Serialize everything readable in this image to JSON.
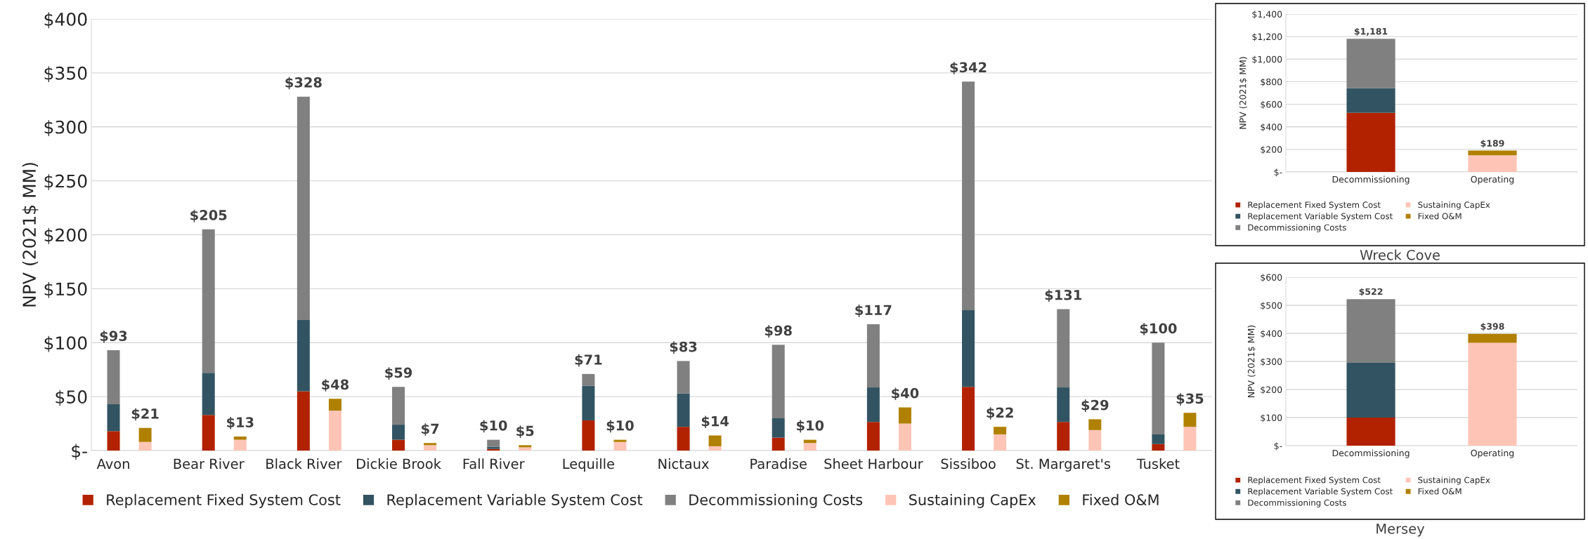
{
  "chart_data": [
    {
      "type": "bar",
      "stacked": true,
      "ylabel": "NPV (2021$ MM)",
      "legend": "bottom",
      "grid": "y",
      "categories": [
        "Avon",
        null,
        "Bear River",
        null,
        "Black River",
        null,
        "Dickie Brook",
        null,
        "Fall River",
        null,
        "Lequille",
        null,
        "Nictaux",
        null,
        "Paradise",
        null,
        "Sheet Harbour",
        null,
        "Sissiboo",
        null,
        "St. Margaret's",
        null,
        "Tusket",
        null
      ],
      "ylim": [
        0,
        400
      ],
      "yticks": [
        {
          "value": 0,
          "label": "$-"
        },
        {
          "value": 50,
          "label": "$50"
        },
        {
          "value": 100,
          "label": "$100"
        },
        {
          "value": 150,
          "label": "$150"
        },
        {
          "value": 200,
          "label": "$200"
        },
        {
          "value": 250,
          "label": "$250"
        },
        {
          "value": 300,
          "label": "$300"
        },
        {
          "value": 350,
          "label": "$350"
        },
        {
          "value": 400,
          "label": "$400"
        }
      ],
      "series": [
        {
          "name": "Replacement Fixed System Cost",
          "color": "#b22200",
          "values": [
            18,
            null,
            33,
            null,
            55,
            null,
            10,
            null,
            1.5,
            null,
            28,
            null,
            22,
            null,
            12,
            null,
            26.5,
            null,
            59,
            null,
            26.5,
            null,
            6,
            null
          ]
        },
        {
          "name": "Replacement Variable System Cost",
          "color": "#325462",
          "values": [
            25,
            null,
            39,
            null,
            66,
            null,
            14,
            null,
            2,
            null,
            32,
            null,
            31,
            null,
            18,
            null,
            32,
            null,
            71,
            null,
            32,
            null,
            9,
            null
          ]
        },
        {
          "name": "Decommissioning Costs",
          "color": "#808080",
          "values": [
            50,
            null,
            133,
            null,
            207,
            null,
            35,
            null,
            6.5,
            null,
            11,
            null,
            30,
            null,
            68,
            null,
            58.5,
            null,
            212,
            null,
            72.5,
            null,
            85,
            null
          ]
        },
        {
          "name": "Sustaining CapEx",
          "color": "#fec5b7",
          "values": [
            null,
            8,
            null,
            10,
            null,
            37,
            null,
            5,
            null,
            3,
            null,
            8,
            null,
            4,
            null,
            7,
            null,
            25,
            null,
            15,
            null,
            19,
            null,
            22
          ]
        },
        {
          "name": "Fixed O&M",
          "color": "#b08000",
          "values": [
            null,
            13,
            null,
            3,
            null,
            11,
            null,
            2,
            null,
            2,
            null,
            2,
            null,
            10,
            null,
            3,
            null,
            15,
            null,
            7,
            null,
            10,
            null,
            13
          ]
        }
      ],
      "totals": [
        "$93",
        "$21",
        "$205",
        "$13",
        "$328",
        "$48",
        "$59",
        "$7",
        "$10",
        "$5",
        "$71",
        "$10",
        "$83",
        "$14",
        "$98",
        "$10",
        "$117",
        "$40",
        "$342",
        "$22",
        "$131",
        "$29",
        "$100",
        "$35"
      ]
    },
    {
      "type": "bar",
      "stacked": true,
      "title": "Wreck Cove",
      "ylabel": "NPV (2021$ MM)",
      "legend": "bottom",
      "grid": "y",
      "categories": [
        "Decommissioning",
        "Operating"
      ],
      "ylim": [
        0,
        1400
      ],
      "yticks": [
        {
          "value": 0,
          "label": "$-"
        },
        {
          "value": 200,
          "label": "$200"
        },
        {
          "value": 400,
          "label": "$400"
        },
        {
          "value": 600,
          "label": "$600"
        },
        {
          "value": 800,
          "label": "$800"
        },
        {
          "value": 1000,
          "label": "$1,000"
        },
        {
          "value": 1200,
          "label": "$1,200"
        },
        {
          "value": 1400,
          "label": "$1,400"
        }
      ],
      "series": [
        {
          "name": "Replacement Fixed System Cost",
          "color": "#b22200",
          "values": [
            525,
            null
          ]
        },
        {
          "name": "Replacement Variable System Cost",
          "color": "#325462",
          "values": [
            218,
            null
          ]
        },
        {
          "name": "Decommissioning Costs",
          "color": "#808080",
          "values": [
            438,
            null
          ]
        },
        {
          "name": "Sustaining CapEx",
          "color": "#fec5b7",
          "values": [
            null,
            147
          ]
        },
        {
          "name": "Fixed O&M",
          "color": "#b08000",
          "values": [
            null,
            42
          ]
        }
      ],
      "totals": [
        "$1,181",
        "$189"
      ]
    },
    {
      "type": "bar",
      "stacked": true,
      "title": "Mersey",
      "ylabel": "NPV (2021$ MM)",
      "legend": "bottom",
      "grid": "y",
      "categories": [
        "Decommissioning",
        "Operating"
      ],
      "ylim": [
        0,
        600
      ],
      "yticks": [
        {
          "value": 0,
          "label": "$-"
        },
        {
          "value": 100,
          "label": "$100"
        },
        {
          "value": 200,
          "label": "$200"
        },
        {
          "value": 300,
          "label": "$300"
        },
        {
          "value": 400,
          "label": "$400"
        },
        {
          "value": 500,
          "label": "$500"
        },
        {
          "value": 600,
          "label": "$600"
        }
      ],
      "series": [
        {
          "name": "Replacement Fixed System Cost",
          "color": "#b22200",
          "values": [
            100,
            null
          ]
        },
        {
          "name": "Replacement Variable System Cost",
          "color": "#325462",
          "values": [
            195,
            null
          ]
        },
        {
          "name": "Decommissioning Costs",
          "color": "#808080",
          "values": [
            227,
            null
          ]
        },
        {
          "name": "Sustaining CapEx",
          "color": "#fec5b7",
          "values": [
            null,
            366
          ]
        },
        {
          "name": "Fixed O&M",
          "color": "#b08000",
          "values": [
            null,
            32
          ]
        }
      ],
      "totals": [
        "$522",
        "$398"
      ]
    }
  ]
}
